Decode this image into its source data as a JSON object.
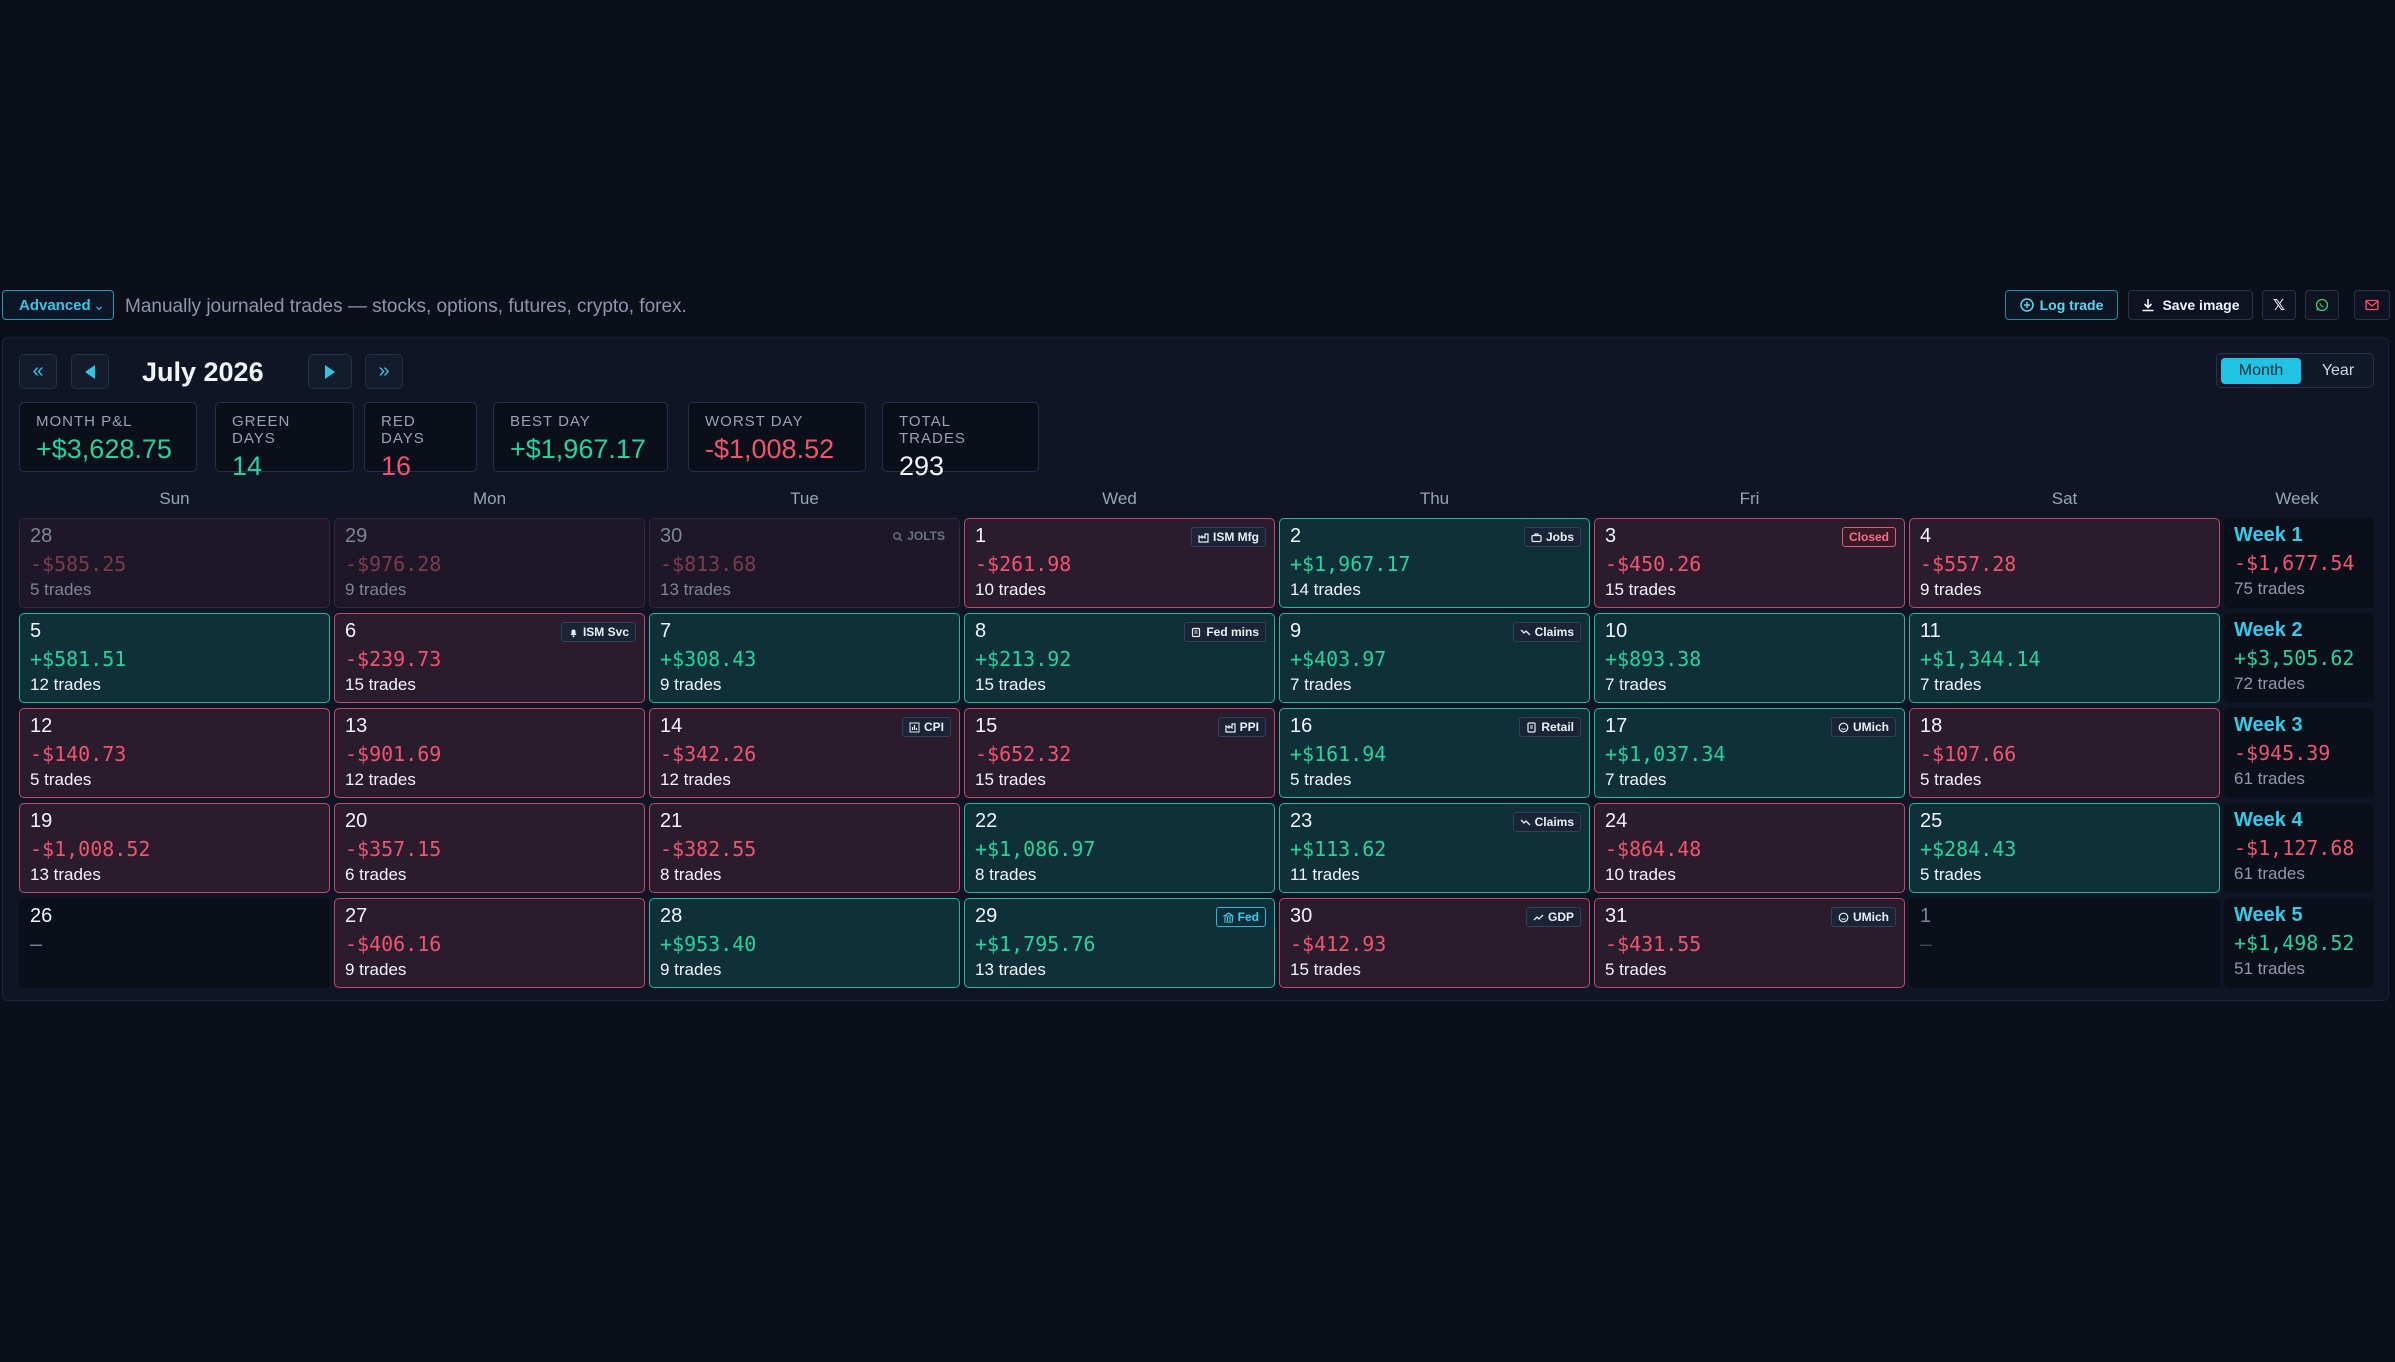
{
  "toolbar": {
    "mode": "Advanced",
    "description": "Manually journaled trades — stocks, options, futures, crypto, forex.",
    "log_trade": "Log trade",
    "save_image": "Save image",
    "x_label": "𝕏"
  },
  "calendar": {
    "title": "July 2026",
    "view_month": "Month",
    "view_year": "Year"
  },
  "stats": [
    {
      "label": "MONTH P&L",
      "value": "+$3,628.75",
      "tone": "green"
    },
    {
      "label": "GREEN DAYS",
      "value": "14",
      "tone": "green"
    },
    {
      "label": "RED DAYS",
      "value": "16",
      "tone": "red"
    },
    {
      "label": "BEST DAY",
      "value": "+$1,967.17",
      "tone": "green"
    },
    {
      "label": "WORST DAY",
      "value": "-$1,008.52",
      "tone": "red"
    },
    {
      "label": "TOTAL TRADES",
      "value": "293",
      "tone": "white"
    }
  ],
  "weekdays": [
    "Sun",
    "Mon",
    "Tue",
    "Wed",
    "Thu",
    "Fri",
    "Sat",
    "Week"
  ],
  "days": [
    {
      "d": "28",
      "p": "-$585.25",
      "t": "5 trades",
      "k": "r",
      "mute": true
    },
    {
      "d": "29",
      "p": "-$976.28",
      "t": "9 trades",
      "k": "r",
      "mute": true
    },
    {
      "d": "30",
      "p": "-$813.68",
      "t": "13 trades",
      "k": "r",
      "mute": true,
      "badge": "JOLTS",
      "bt": "muted",
      "icon": "search-icon"
    },
    {
      "d": "1",
      "p": "-$261.98",
      "t": "10 trades",
      "k": "r",
      "badge": "ISM Mfg",
      "icon": "factory-icon"
    },
    {
      "d": "2",
      "p": "+$1,967.17",
      "t": "14 trades",
      "k": "g",
      "badge": "Jobs",
      "icon": "briefcase-icon"
    },
    {
      "d": "3",
      "p": "-$450.26",
      "t": "15 trades",
      "k": "r",
      "badge": "Closed",
      "bt": "closed"
    },
    {
      "d": "4",
      "p": "-$557.28",
      "t": "9 trades",
      "k": "r"
    },
    {
      "d": "5",
      "p": "+$581.51",
      "t": "12 trades",
      "k": "g"
    },
    {
      "d": "6",
      "p": "-$239.73",
      "t": "15 trades",
      "k": "r",
      "badge": "ISM Svc",
      "icon": "bell-icon"
    },
    {
      "d": "7",
      "p": "+$308.43",
      "t": "9 trades",
      "k": "g"
    },
    {
      "d": "8",
      "p": "+$213.92",
      "t": "15 trades",
      "k": "g",
      "badge": "Fed mins",
      "icon": "notes-icon"
    },
    {
      "d": "9",
      "p": "+$403.97",
      "t": "7 trades",
      "k": "g",
      "badge": "Claims",
      "icon": "trend-down-icon"
    },
    {
      "d": "10",
      "p": "+$893.38",
      "t": "7 trades",
      "k": "g"
    },
    {
      "d": "11",
      "p": "+$1,344.14",
      "t": "7 trades",
      "k": "g"
    },
    {
      "d": "12",
      "p": "-$140.73",
      "t": "5 trades",
      "k": "r"
    },
    {
      "d": "13",
      "p": "-$901.69",
      "t": "12 trades",
      "k": "r"
    },
    {
      "d": "14",
      "p": "-$342.26",
      "t": "12 trades",
      "k": "r",
      "badge": "CPI",
      "icon": "bar-chart-icon"
    },
    {
      "d": "15",
      "p": "-$652.32",
      "t": "15 trades",
      "k": "r",
      "badge": "PPI",
      "icon": "factory-icon"
    },
    {
      "d": "16",
      "p": "+$161.94",
      "t": "5 trades",
      "k": "g",
      "badge": "Retail",
      "icon": "receipt-icon"
    },
    {
      "d": "17",
      "p": "+$1,037.34",
      "t": "7 trades",
      "k": "g",
      "badge": "UMich",
      "icon": "smiley-icon"
    },
    {
      "d": "18",
      "p": "-$107.66",
      "t": "5 trades",
      "k": "r"
    },
    {
      "d": "19",
      "p": "-$1,008.52",
      "t": "13 trades",
      "k": "r"
    },
    {
      "d": "20",
      "p": "-$357.15",
      "t": "6 trades",
      "k": "r"
    },
    {
      "d": "21",
      "p": "-$382.55",
      "t": "8 trades",
      "k": "r"
    },
    {
      "d": "22",
      "p": "+$1,086.97",
      "t": "8 trades",
      "k": "g"
    },
    {
      "d": "23",
      "p": "+$113.62",
      "t": "11 trades",
      "k": "g",
      "badge": "Claims",
      "icon": "trend-down-icon"
    },
    {
      "d": "24",
      "p": "-$864.48",
      "t": "10 trades",
      "k": "r"
    },
    {
      "d": "25",
      "p": "+$284.43",
      "t": "5 trades",
      "k": "g"
    },
    {
      "d": "26",
      "p": "—",
      "t": "",
      "k": "n"
    },
    {
      "d": "27",
      "p": "-$406.16",
      "t": "9 trades",
      "k": "r"
    },
    {
      "d": "28",
      "p": "+$953.40",
      "t": "9 trades",
      "k": "g"
    },
    {
      "d": "29",
      "p": "+$1,795.76",
      "t": "13 trades",
      "k": "g",
      "badge": "Fed",
      "bt": "fed",
      "icon": "bank-icon"
    },
    {
      "d": "30",
      "p": "-$412.93",
      "t": "15 trades",
      "k": "r",
      "badge": "GDP",
      "icon": "trend-up-icon"
    },
    {
      "d": "31",
      "p": "-$431.55",
      "t": "5 trades",
      "k": "r",
      "badge": "UMich",
      "icon": "smiley-icon"
    },
    {
      "d": "1",
      "p": "—",
      "t": "",
      "k": "n",
      "mute": true
    }
  ],
  "weeks": [
    {
      "label": "Week 1",
      "p": "-$1,677.54",
      "t": "75 trades",
      "tone": "red"
    },
    {
      "label": "Week 2",
      "p": "+$3,505.62",
      "t": "72 trades",
      "tone": "green"
    },
    {
      "label": "Week 3",
      "p": "-$945.39",
      "t": "61 trades",
      "tone": "red"
    },
    {
      "label": "Week 4",
      "p": "-$1,127.68",
      "t": "61 trades",
      "tone": "red"
    },
    {
      "label": "Week 5",
      "p": "+$1,498.52",
      "t": "51 trades",
      "tone": "green"
    }
  ],
  "colors": {
    "green": "#28d39a",
    "red": "#f0556e",
    "accent": "#21c3e4",
    "bg": "#0b0f1a"
  }
}
